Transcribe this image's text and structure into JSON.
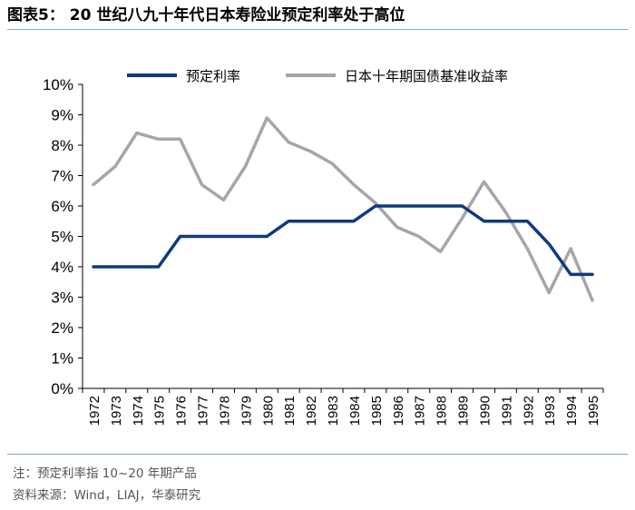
{
  "figure": {
    "title": "图表5： 20 世纪八九十年代日本寿险业预定利率处于高位",
    "note": "注：预定利率指 10~20 年期产品",
    "source": "资料来源：Wind，LIAJ，华泰研究"
  },
  "chart_data": {
    "type": "line",
    "title": "",
    "xlabel": "",
    "ylabel": "",
    "categories": [
      "1972",
      "1973",
      "1974",
      "1975",
      "1976",
      "1977",
      "1978",
      "1979",
      "1980",
      "1981",
      "1982",
      "1983",
      "1984",
      "1985",
      "1986",
      "1987",
      "1988",
      "1989",
      "1990",
      "1991",
      "1992",
      "1993",
      "1994",
      "1995"
    ],
    "ylim": [
      0,
      10
    ],
    "y_ticks": [
      0,
      1,
      2,
      3,
      4,
      5,
      6,
      7,
      8,
      9,
      10
    ],
    "y_tick_labels": [
      "0%",
      "1%",
      "2%",
      "3%",
      "4%",
      "5%",
      "6%",
      "7%",
      "8%",
      "9%",
      "10%"
    ],
    "grid": false,
    "legend_position": "top",
    "series": [
      {
        "name": "预定利率",
        "color": "#0f3a7d",
        "values": [
          4.0,
          4.0,
          4.0,
          4.0,
          5.0,
          5.0,
          5.0,
          5.0,
          5.0,
          5.5,
          5.5,
          5.5,
          5.5,
          6.0,
          6.0,
          6.0,
          6.0,
          6.0,
          5.5,
          5.5,
          5.5,
          4.75,
          3.75,
          3.75
        ]
      },
      {
        "name": "日本十年期国债基准收益率",
        "color": "#a6a6a6",
        "values": [
          6.7,
          7.3,
          8.4,
          8.2,
          8.2,
          6.7,
          6.2,
          7.3,
          8.9,
          8.1,
          7.8,
          7.4,
          6.7,
          6.1,
          5.3,
          5.0,
          4.5,
          5.6,
          6.8,
          5.8,
          4.6,
          3.15,
          4.6,
          2.9
        ]
      }
    ]
  }
}
